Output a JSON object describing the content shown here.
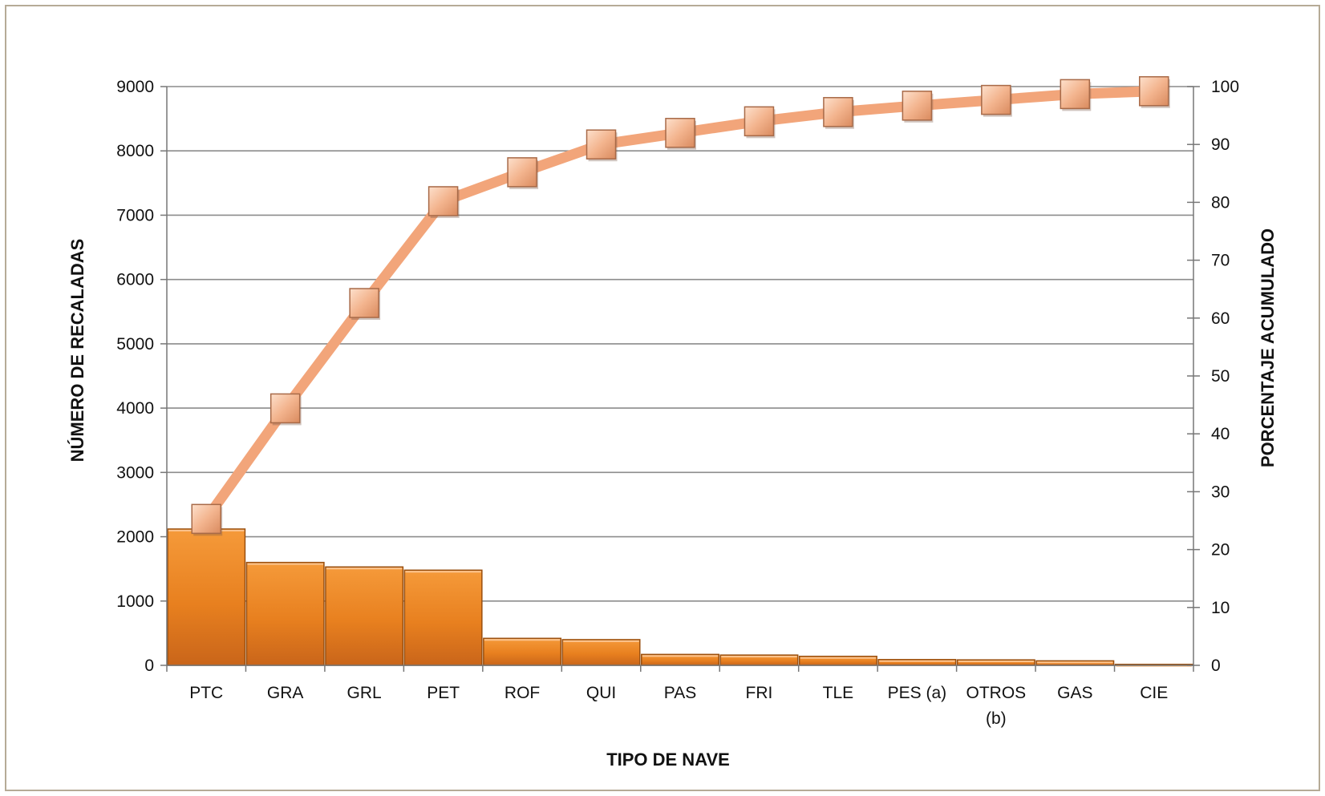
{
  "chart_data": {
    "type": "bar",
    "categories": [
      "PTC",
      "GRA",
      "GRL",
      "PET",
      "ROF",
      "QUI",
      "PAS",
      "FRI",
      "TLE",
      "PES (a)",
      "OTROS (b)",
      "GAS",
      "CIE"
    ],
    "category_label_lines": [
      [
        "PTC"
      ],
      [
        "GRA"
      ],
      [
        "GRL"
      ],
      [
        "PET"
      ],
      [
        "ROF"
      ],
      [
        "QUI"
      ],
      [
        "PAS"
      ],
      [
        "FRI"
      ],
      [
        "TLE"
      ],
      [
        "PES (a)"
      ],
      [
        "OTROS",
        "(b)"
      ],
      [
        "GAS"
      ],
      [
        "CIE"
      ]
    ],
    "series": [
      {
        "type": "bar",
        "axis": "left",
        "values": [
          2120,
          1600,
          1530,
          1480,
          420,
          400,
          170,
          160,
          140,
          90,
          85,
          70,
          15
        ],
        "color": "#e8801f"
      },
      {
        "type": "line",
        "axis": "right",
        "values": [
          25.3,
          44.4,
          62.6,
          80.2,
          85.2,
          90.0,
          92.0,
          94.0,
          95.6,
          96.7,
          97.7,
          98.7,
          99.2
        ],
        "color": "#f2a57a",
        "marker": "square"
      }
    ],
    "xlabel": "TIPO DE NAVE",
    "ylabel": "NÚMERO DE RECALADAS",
    "y2label": "PORCENTAJE ACUMULADO",
    "ylim": [
      0,
      9000
    ],
    "yticks": [
      0,
      1000,
      2000,
      3000,
      4000,
      5000,
      6000,
      7000,
      8000,
      9000
    ],
    "y2lim": [
      0,
      100
    ],
    "y2ticks": [
      0,
      10,
      20,
      30,
      40,
      50,
      60,
      70,
      80,
      90,
      100
    ],
    "grid": true,
    "legend": "none"
  },
  "colors": {
    "bar": "#e8801f",
    "bar_edge": "#9a4f0e",
    "line": "#f2a57a",
    "marker": "#f3b48e",
    "grid": "#8c8c8c",
    "frame": "#b6ab97"
  }
}
